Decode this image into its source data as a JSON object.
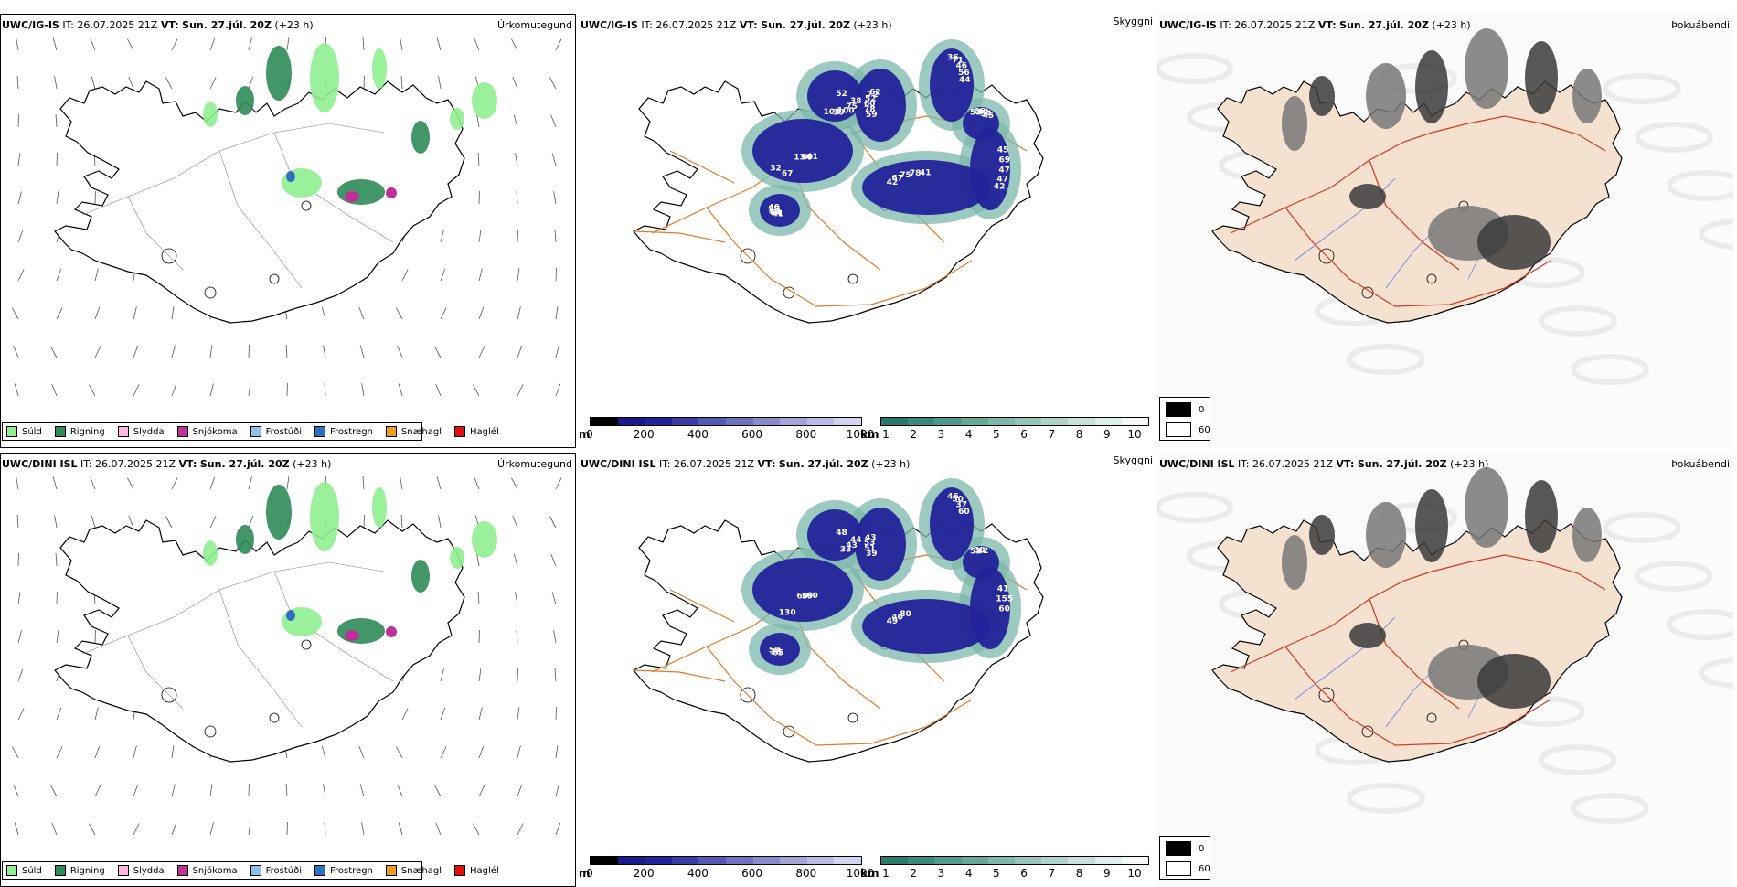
{
  "map_title": {
    "igis_model": "UWC/IG-IS",
    "dini_model": "UWC/DINI ISL",
    "it_prefix": "IT:",
    "it_time": "26.07.2025 21Z",
    "vt_prefix": "VT:",
    "vt_time": "Sun. 27.júl. 20Z",
    "lead": "(+23 h)"
  },
  "fields": {
    "precip_type": "Úrkomutegund",
    "visibility": "Skyggni",
    "fog": "Þokuábendi"
  },
  "precip_legend": [
    {
      "label": "Súld",
      "color": "#90ee90"
    },
    {
      "label": "Rigning",
      "color": "#2e8b57"
    },
    {
      "label": "Slydda",
      "color": "#ffb6e0"
    },
    {
      "label": "Snjókoma",
      "color": "#c0309a"
    },
    {
      "label": "Frostúði",
      "color": "#90c0f0"
    },
    {
      "label": "Frostregn",
      "color": "#2f6fc0"
    },
    {
      "label": "Snæhagl",
      "color": "#f09a20"
    },
    {
      "label": "Haglél",
      "color": "#e01010"
    }
  ],
  "height_bar": {
    "unit": "m",
    "ticks": [
      "0",
      "200",
      "400",
      "600",
      "800",
      "1000"
    ],
    "colors": [
      "#000000",
      "#1a1a8a",
      "#22229a",
      "#3a3aa8",
      "#5656b4",
      "#7070c0",
      "#8a8acc",
      "#a4a4d8",
      "#bcbce4",
      "#d4d4ee"
    ]
  },
  "vis_bar": {
    "unit": "km",
    "ticks": [
      "1",
      "2",
      "3",
      "4",
      "5",
      "6",
      "7",
      "8",
      "9",
      "10"
    ],
    "colors": [
      "#2a7a6a",
      "#3a8a7a",
      "#4f9a8b",
      "#66a99b",
      "#7cb8ab",
      "#94c6bb",
      "#acd4cb",
      "#c4e2db",
      "#dcefea",
      "#f2f9f7"
    ]
  },
  "fog_legend": [
    {
      "label": "0",
      "color": "#000000"
    },
    {
      "label": "60",
      "color": "#ffffff"
    }
  ],
  "labels_igis": [
    "52",
    "59",
    "36",
    "41",
    "42",
    "45",
    "41",
    "53",
    "38",
    "78",
    "71",
    "69",
    "67",
    "69",
    "64",
    "66",
    "75",
    "60",
    "46",
    "134",
    "75",
    "47",
    "50",
    "40",
    "100",
    "52",
    "56",
    "67",
    "78",
    "47",
    "55",
    "54",
    "39",
    "72",
    "44",
    "32",
    "41",
    "42",
    "40",
    "45",
    "108",
    "62"
  ],
  "labels_dini": [
    "48",
    "39",
    "46",
    "60",
    "49",
    "41",
    "65",
    "53",
    "44",
    "51",
    "50",
    "59",
    "40",
    "155",
    "38",
    "30",
    "43",
    "53",
    "37",
    "60",
    "80",
    "60",
    "50",
    "42",
    "33",
    "43",
    "60",
    "130"
  ],
  "colors": {
    "coast": "#000000",
    "road": "#e87722",
    "road_red": "#d63a1a",
    "fog_land": "#f5e1cf",
    "river": "#6a7ae8"
  }
}
